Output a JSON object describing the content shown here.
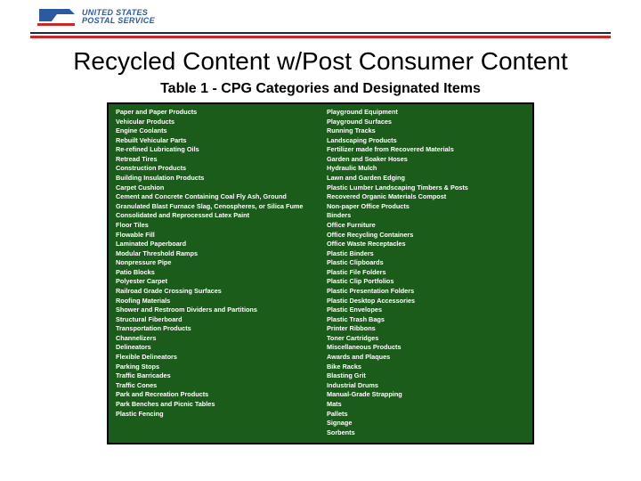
{
  "brand": {
    "line1": "UNITED STATES",
    "line2": "POSTAL SERVICE"
  },
  "title": "Recycled Content w/Post Consumer Content",
  "subtitle": "Table 1 - CPG Categories and Designated Items",
  "colors": {
    "navy": "#1b2845",
    "red": "#c82828",
    "table_bg": "#1b5c1b",
    "text_on_table": "#ffffff",
    "logo_blue": "#2c5aa0"
  },
  "col_left": [
    "Paper and Paper Products",
    "Vehicular Products",
    "Engine Coolants",
    "Rebuilt Vehicular Parts",
    "Re-refined Lubricating Oils",
    "Retread Tires",
    "Construction Products",
    "Building Insulation Products",
    "Carpet Cushion",
    "Cement and Concrete Containing Coal Fly Ash, Ground Granulated Blast Furnace Slag, Cenospheres, or Silica Fume",
    "Consolidated and Reprocessed Latex Paint",
    "Floor Tiles",
    "Flowable Fill",
    "Laminated Paperboard",
    "Modular Threshold Ramps",
    "Nonpressure Pipe",
    "Patio Blocks",
    "Polyester Carpet",
    "Railroad Grade Crossing Surfaces",
    "Roofing Materials",
    "Shower and Restroom Dividers and Partitions",
    "Structural Fiberboard",
    "Transportation Products",
    "Channelizers",
    "Delineators",
    "Flexible Delineators",
    "Parking Stops",
    "Traffic Barricades",
    "Traffic Cones",
    "Park and Recreation Products",
    "Park Benches and Picnic Tables",
    "Plastic Fencing"
  ],
  "col_right": [
    "Playground Equipment",
    "Playground Surfaces",
    "Running Tracks",
    "Landscaping Products",
    "Fertilizer made from Recovered Materials",
    "Garden and Soaker Hoses",
    "Hydraulic Mulch",
    "Lawn and Garden Edging",
    "Plastic Lumber Landscaping Timbers & Posts",
    "Recovered Organic Materials Compost",
    "Non-paper Office Products",
    "Binders",
    "Office Furniture",
    "Office Recycling Containers",
    "Office Waste Receptacles",
    "Plastic Binders",
    "Plastic Clipboards",
    "Plastic File Folders",
    "Plastic Clip Portfolios",
    "Plastic Presentation Folders",
    "Plastic Desktop Accessories",
    "Plastic Envelopes",
    "Plastic Trash Bags",
    "Printer Ribbons",
    "Toner Cartridges",
    "Miscellaneous Products",
    "Awards and Plaques",
    "Bike Racks",
    "Blasting Grit",
    "Industrial Drums",
    "Manual-Grade Strapping",
    "Mats",
    "Pallets",
    "Signage",
    "Sorbents"
  ]
}
